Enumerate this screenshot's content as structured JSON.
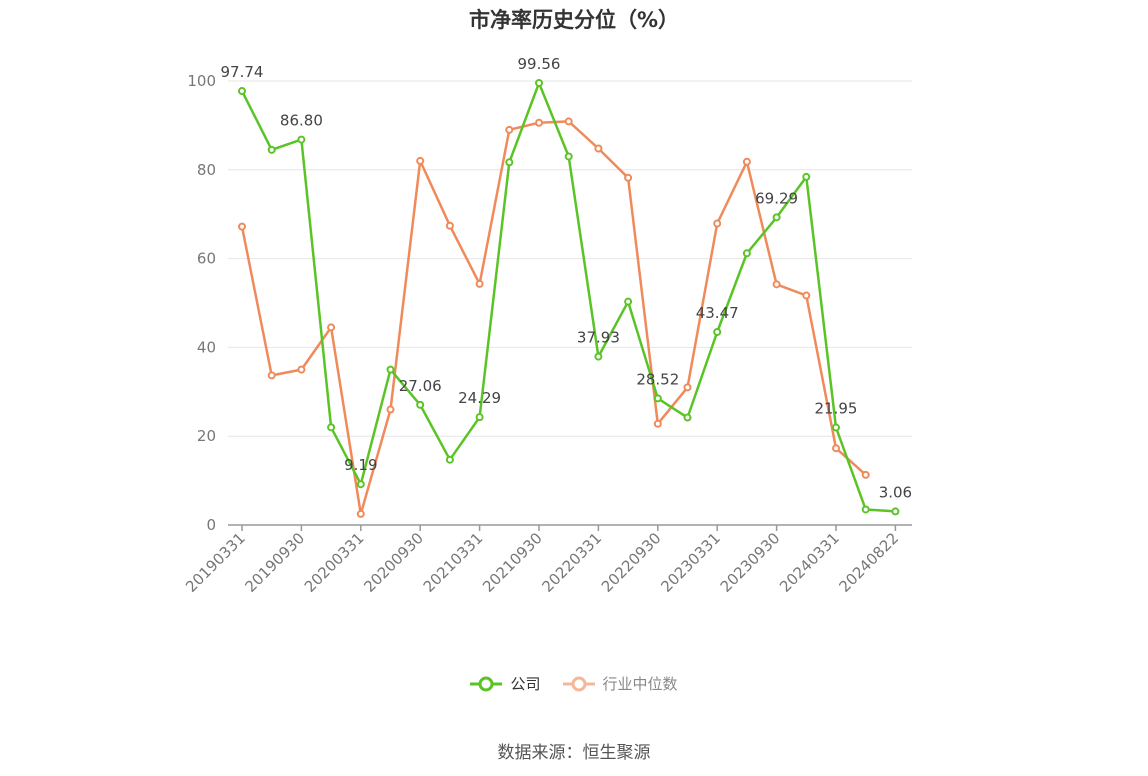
{
  "chart_title": "市净率历史分位（%）",
  "source_note": "数据来源：恒生聚源",
  "colors": {
    "company": "#5ac426",
    "industry": "#f08a5a",
    "industry_legend": "#f5b79a",
    "grid": "#e6e6e6",
    "axis": "#999999"
  },
  "legend": [
    {
      "label": "公司",
      "series": "company"
    },
    {
      "label": "行业中位数",
      "series": "industry"
    }
  ],
  "chart_data": {
    "type": "line",
    "title": "市净率历史分位（%）",
    "ylim": [
      0,
      100
    ],
    "yticks": [
      0,
      20,
      40,
      60,
      80,
      100
    ],
    "grid": true,
    "legend_position": "bottom",
    "x_tick_labels": [
      "20190331",
      "20190930",
      "20200331",
      "20200930",
      "20210331",
      "20210930",
      "20220331",
      "20220930",
      "20230331",
      "20230930",
      "20240331",
      "20240822"
    ],
    "x": [
      "20190331",
      "20190630",
      "20190930",
      "20191231",
      "20200331",
      "20200630",
      "20200930",
      "20201231",
      "20210331",
      "20210630",
      "20210930",
      "20211231",
      "20220331",
      "20220630",
      "20220930",
      "20221231",
      "20230331",
      "20230630",
      "20230930",
      "20231231",
      "20240331",
      "20240630",
      "20240822"
    ],
    "series": [
      {
        "name": "公司",
        "key": "company",
        "values": [
          97.74,
          84.5,
          86.8,
          22.0,
          9.19,
          35.0,
          27.06,
          14.7,
          24.29,
          81.7,
          99.56,
          83.0,
          37.93,
          50.3,
          28.52,
          24.2,
          43.47,
          61.2,
          69.29,
          78.4,
          21.95,
          3.5,
          3.06
        ],
        "labels": [
          "97.74",
          "",
          "86.80",
          "",
          "9.19",
          "",
          "27.06",
          "",
          "24.29",
          "",
          "99.56",
          "",
          "37.93",
          "",
          "28.52",
          "",
          "43.47",
          "",
          "69.29",
          "",
          "21.95",
          "",
          "3.06"
        ]
      },
      {
        "name": "行业中位数",
        "key": "industry",
        "values": [
          67.2,
          33.7,
          35.0,
          44.5,
          2.5,
          26.0,
          82.0,
          67.4,
          54.3,
          89.0,
          90.6,
          90.9,
          84.8,
          78.2,
          22.8,
          31.0,
          67.9,
          81.8,
          54.2,
          51.7,
          17.3,
          11.3,
          null
        ]
      }
    ]
  }
}
